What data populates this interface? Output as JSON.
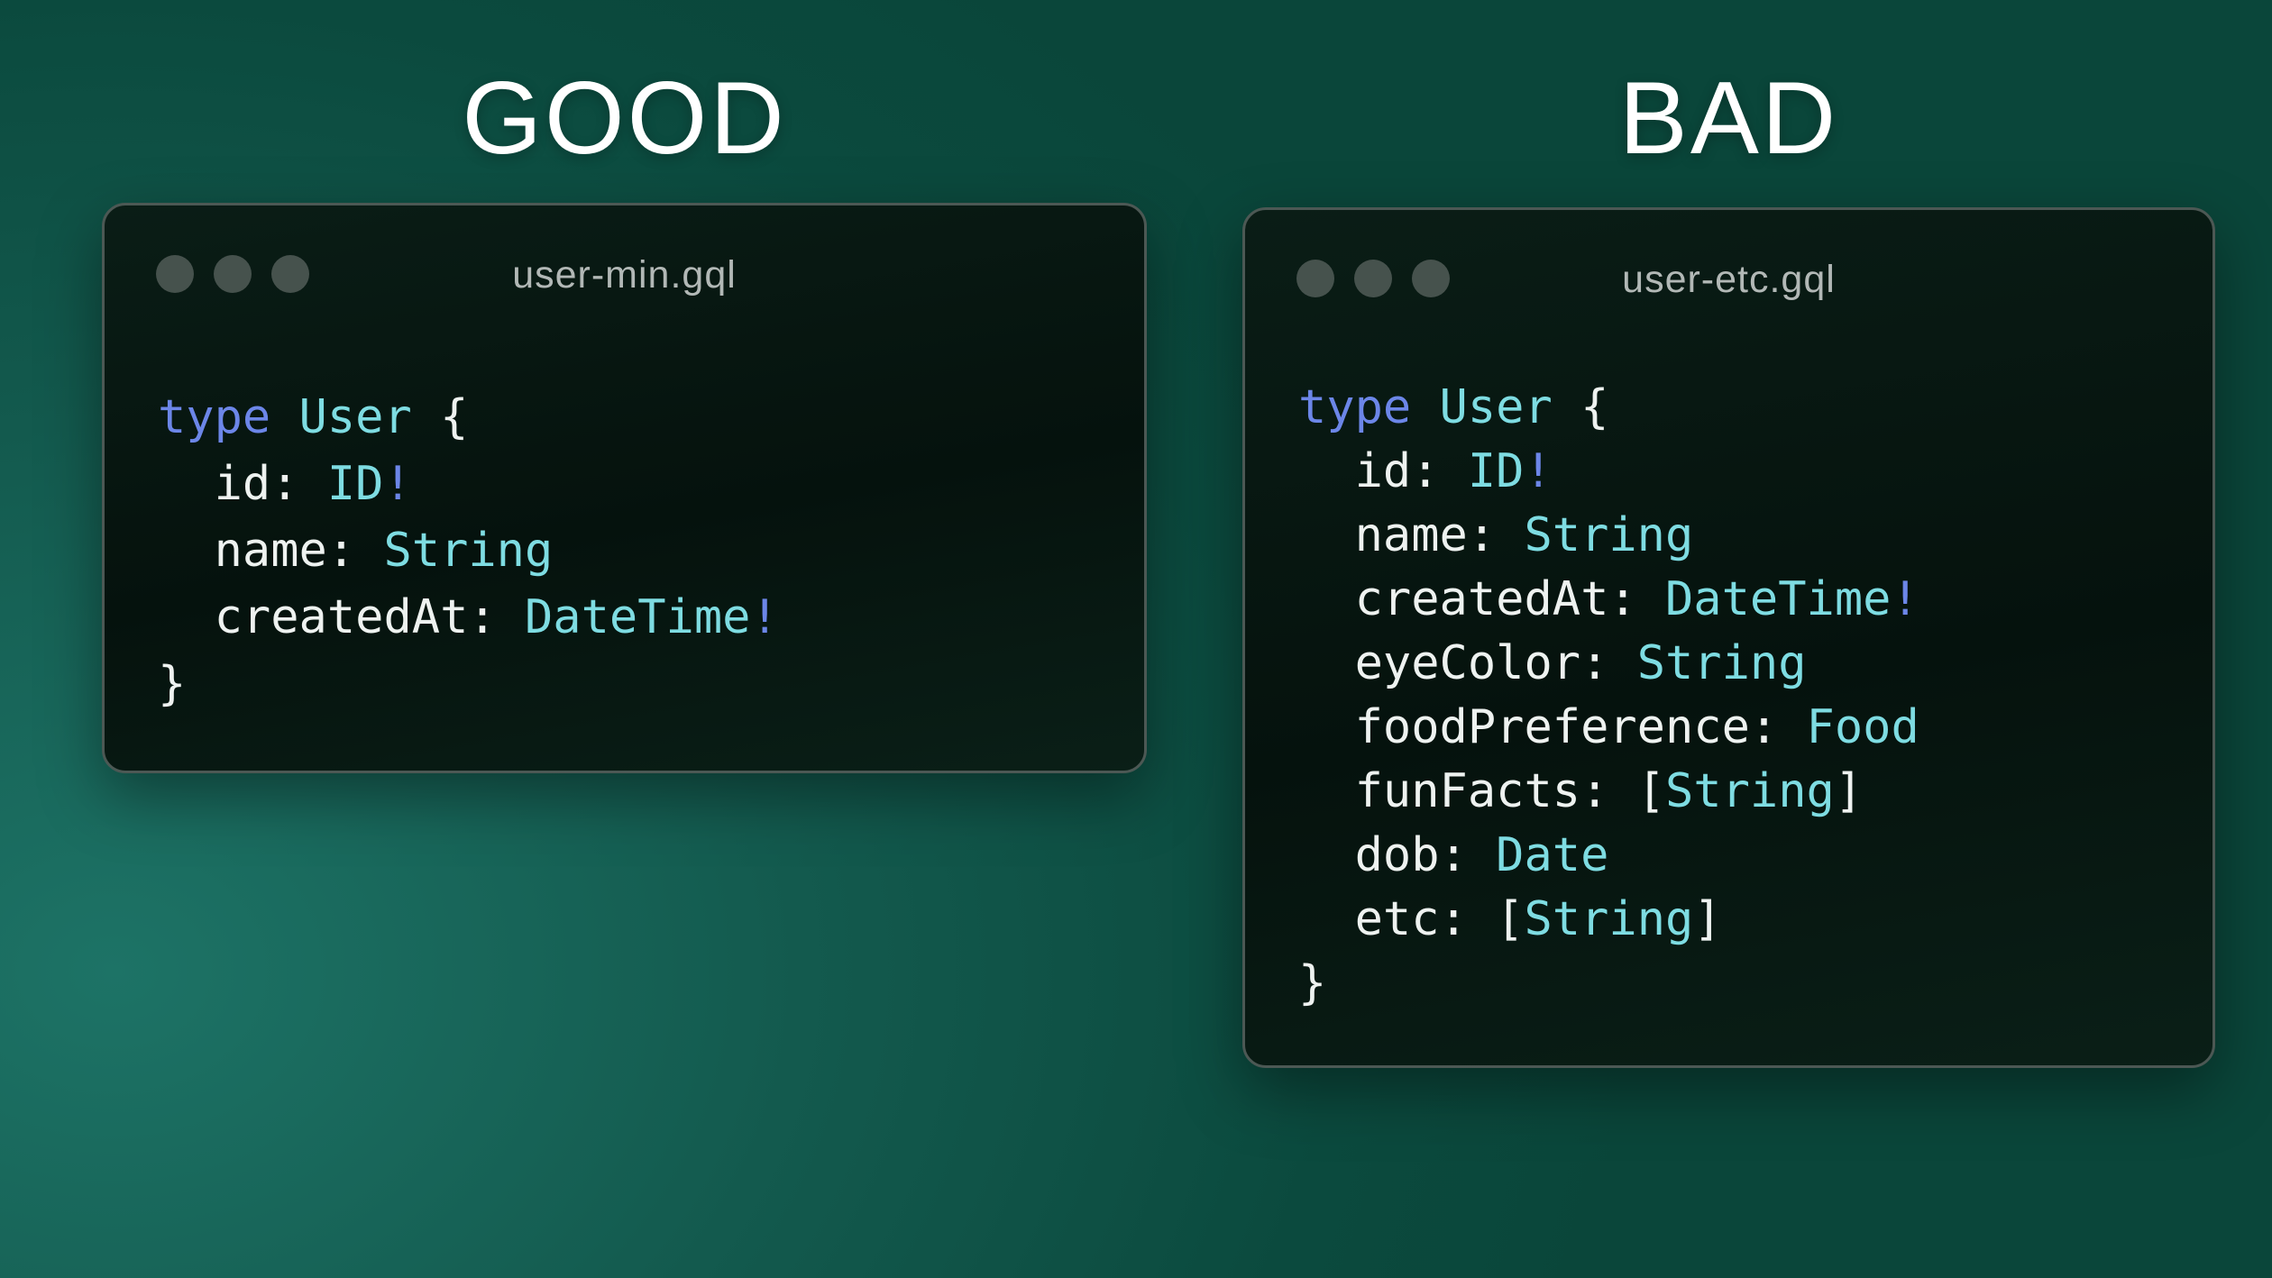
{
  "colors": {
    "keyword": "#6c86e8",
    "type_name": "#7edce2",
    "plain": "#eef2f0",
    "window_title": "#b2b8b6",
    "heading": "#ffffff",
    "window_dot": "#46524d",
    "window_border": "#4c5854",
    "background_highlight": "#1d7366",
    "background_edge": "#0a463a"
  },
  "panels": [
    {
      "heading": "GOOD",
      "window_title": "user-min.gql",
      "code": [
        {
          "tokens": [
            {
              "t": "type",
              "c": "kw"
            },
            {
              "t": " ",
              "c": "pl"
            },
            {
              "t": "User",
              "c": "ty"
            },
            {
              "t": " {",
              "c": "pl"
            }
          ]
        },
        {
          "tokens": [
            {
              "t": "  id: ",
              "c": "pl"
            },
            {
              "t": "ID",
              "c": "ty"
            },
            {
              "t": "!",
              "c": "kw"
            }
          ]
        },
        {
          "tokens": [
            {
              "t": "  name: ",
              "c": "pl"
            },
            {
              "t": "String",
              "c": "ty"
            }
          ]
        },
        {
          "tokens": [
            {
              "t": "  createdAt: ",
              "c": "pl"
            },
            {
              "t": "DateTime",
              "c": "ty"
            },
            {
              "t": "!",
              "c": "kw"
            }
          ]
        },
        {
          "tokens": [
            {
              "t": "}",
              "c": "pl"
            }
          ]
        }
      ]
    },
    {
      "heading": "BAD",
      "window_title": "user-etc.gql",
      "code": [
        {
          "tokens": [
            {
              "t": "type",
              "c": "kw"
            },
            {
              "t": " ",
              "c": "pl"
            },
            {
              "t": "User",
              "c": "ty"
            },
            {
              "t": " {",
              "c": "pl"
            }
          ]
        },
        {
          "tokens": [
            {
              "t": "  id: ",
              "c": "pl"
            },
            {
              "t": "ID",
              "c": "ty"
            },
            {
              "t": "!",
              "c": "kw"
            }
          ]
        },
        {
          "tokens": [
            {
              "t": "  name: ",
              "c": "pl"
            },
            {
              "t": "String",
              "c": "ty"
            }
          ]
        },
        {
          "tokens": [
            {
              "t": "  createdAt: ",
              "c": "pl"
            },
            {
              "t": "DateTime",
              "c": "ty"
            },
            {
              "t": "!",
              "c": "kw"
            }
          ]
        },
        {
          "tokens": [
            {
              "t": "  eyeColor: ",
              "c": "pl"
            },
            {
              "t": "String",
              "c": "ty"
            }
          ]
        },
        {
          "tokens": [
            {
              "t": "  foodPreference: ",
              "c": "pl"
            },
            {
              "t": "Food",
              "c": "ty"
            }
          ]
        },
        {
          "tokens": [
            {
              "t": "  funFacts: ",
              "c": "pl"
            },
            {
              "t": "[",
              "c": "pl"
            },
            {
              "t": "String",
              "c": "ty"
            },
            {
              "t": "]",
              "c": "pl"
            }
          ]
        },
        {
          "tokens": [
            {
              "t": "  dob: ",
              "c": "pl"
            },
            {
              "t": "Date",
              "c": "ty"
            }
          ]
        },
        {
          "tokens": [
            {
              "t": "  etc: ",
              "c": "pl"
            },
            {
              "t": "[",
              "c": "pl"
            },
            {
              "t": "String",
              "c": "ty"
            },
            {
              "t": "]",
              "c": "pl"
            }
          ]
        },
        {
          "tokens": [
            {
              "t": "}",
              "c": "pl"
            }
          ]
        }
      ]
    }
  ]
}
